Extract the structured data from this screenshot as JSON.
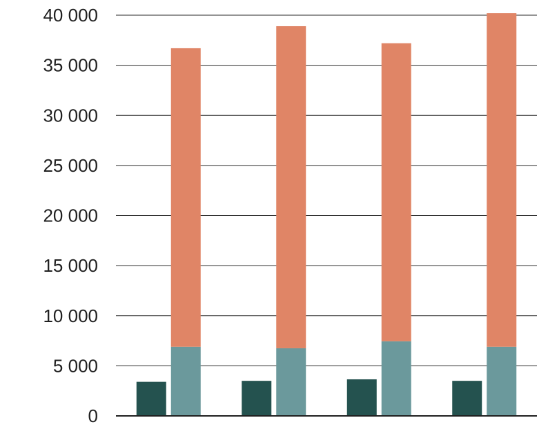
{
  "chart_data": {
    "type": "bar",
    "stacked": true,
    "categories": [
      "",
      "",
      "",
      ""
    ],
    "series": [
      {
        "values": [
          3400,
          3500,
          3650,
          3500
        ],
        "color": "#24524f",
        "stack": "a"
      },
      {
        "values": [
          6900,
          6750,
          7450,
          6900
        ],
        "color": "#6b999c",
        "stack": "b"
      },
      {
        "values": [
          29800,
          32150,
          29750,
          33300
        ],
        "color": "#e08566",
        "stack": "b"
      }
    ],
    "stack_totals": {
      "a": [
        3400,
        3500,
        3650,
        3500
      ],
      "b": [
        36700,
        38900,
        37200,
        40200
      ]
    },
    "ylim": [
      0,
      40000
    ],
    "yticks": [
      0,
      5000,
      10000,
      15000,
      20000,
      25000,
      30000,
      35000,
      40000
    ],
    "ytick_labels": [
      "0",
      "5 000",
      "10 000",
      "15 000",
      "20 000",
      "25 000",
      "30 000",
      "35 000",
      "40 000"
    ],
    "title": "",
    "xlabel": "",
    "ylabel": "",
    "grid": true,
    "legend": false
  }
}
